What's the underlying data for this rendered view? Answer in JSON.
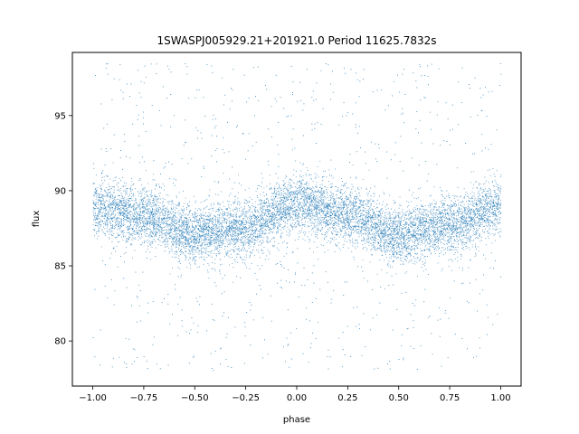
{
  "chart_data": {
    "type": "scatter",
    "title": "1SWASPJ005929.21+201921.0 Period 11625.7832s",
    "xlabel": "phase",
    "ylabel": "flux",
    "xlim": [
      -1.1,
      1.1
    ],
    "ylim": [
      77.0,
      99.2
    ],
    "x_ticks": [
      -1.0,
      -0.75,
      -0.5,
      -0.25,
      0.0,
      0.25,
      0.5,
      0.75,
      1.0
    ],
    "x_tick_labels": [
      "−1.00",
      "−0.75",
      "−0.50",
      "−0.25",
      "0.00",
      "0.25",
      "0.50",
      "0.75",
      "1.00"
    ],
    "y_ticks": [
      80,
      85,
      90,
      95
    ],
    "y_tick_labels": [
      "80",
      "85",
      "90",
      "95"
    ],
    "grid": false,
    "marker_color": "#1f77b4",
    "series": [
      {
        "phase_range": [
          -1.0,
          1.0
        ],
        "flux_range": [
          78.0,
          98.5
        ],
        "trend_x": [
          -1.0,
          -0.75,
          -0.5,
          -0.25,
          0.0,
          0.25,
          0.5,
          0.75,
          1.0
        ],
        "trend_y": [
          88.9,
          88.3,
          87.1,
          87.6,
          89.2,
          88.4,
          87.0,
          87.7,
          89.0
        ],
        "band_halfwidth": 1.5
      }
    ]
  }
}
